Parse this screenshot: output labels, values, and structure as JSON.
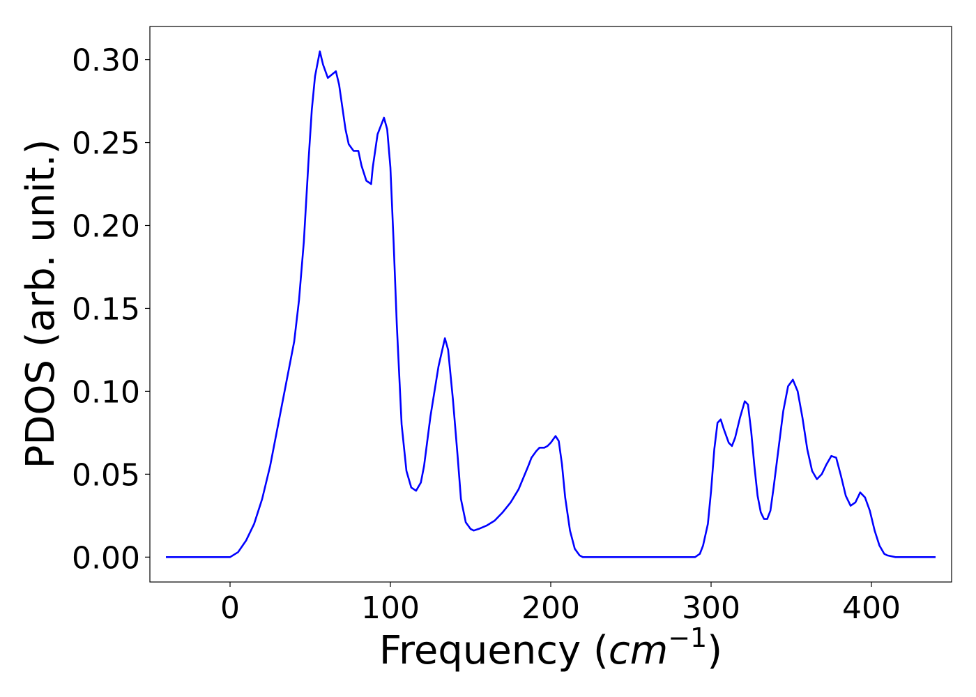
{
  "chart_data": {
    "type": "line",
    "title": "",
    "xlabel": "Frequency",
    "xlabel_unit_base": "cm",
    "xlabel_unit_exp": "−1",
    "ylabel": "PDOS (arb. unit.)",
    "xlim": [
      -50,
      450
    ],
    "ylim": [
      -0.015,
      0.32
    ],
    "xticks": [
      0,
      100,
      200,
      300,
      400
    ],
    "xtick_labels": [
      "0",
      "100",
      "200",
      "300",
      "400"
    ],
    "yticks": [
      0.0,
      0.05,
      0.1,
      0.15,
      0.2,
      0.25,
      0.3
    ],
    "ytick_labels": [
      "0.00",
      "0.05",
      "0.10",
      "0.15",
      "0.20",
      "0.25",
      "0.30"
    ],
    "grid": false,
    "series": [
      {
        "color": "#0000ff",
        "x": [
          -40,
          -10,
          0,
          5,
          10,
          15,
          20,
          25,
          30,
          35,
          40,
          43,
          46,
          49,
          51,
          53,
          56,
          58,
          61,
          66,
          68,
          72,
          74,
          77,
          80,
          82,
          85,
          88,
          89,
          92,
          96,
          98,
          100,
          102,
          104,
          107,
          110,
          113,
          116,
          119,
          121,
          125,
          130,
          134,
          136,
          139,
          142,
          144,
          147,
          150,
          152,
          155,
          160,
          165,
          170,
          175,
          180,
          183,
          186,
          188,
          191,
          193,
          196,
          198,
          200,
          203,
          205,
          207,
          209,
          212,
          215,
          218,
          220,
          225,
          250,
          280,
          290,
          293,
          295,
          298,
          300,
          302,
          304,
          306,
          308,
          311,
          313,
          315,
          318,
          321,
          323,
          325,
          327,
          329,
          331,
          333,
          335,
          337,
          339,
          342,
          345,
          348,
          351,
          354,
          357,
          360,
          363,
          366,
          369,
          372,
          375,
          378,
          381,
          384,
          387,
          390,
          393,
          396,
          399,
          402,
          405,
          408,
          410,
          415,
          440
        ],
        "y": [
          0.0,
          0.0,
          0.0,
          0.003,
          0.01,
          0.02,
          0.035,
          0.055,
          0.08,
          0.105,
          0.13,
          0.155,
          0.19,
          0.24,
          0.27,
          0.29,
          0.305,
          0.297,
          0.289,
          0.293,
          0.285,
          0.258,
          0.249,
          0.245,
          0.245,
          0.236,
          0.227,
          0.225,
          0.235,
          0.255,
          0.265,
          0.258,
          0.235,
          0.19,
          0.14,
          0.08,
          0.052,
          0.042,
          0.04,
          0.045,
          0.055,
          0.085,
          0.115,
          0.132,
          0.125,
          0.095,
          0.06,
          0.035,
          0.021,
          0.017,
          0.016,
          0.017,
          0.019,
          0.022,
          0.027,
          0.033,
          0.041,
          0.048,
          0.055,
          0.06,
          0.064,
          0.066,
          0.066,
          0.067,
          0.069,
          0.073,
          0.07,
          0.056,
          0.036,
          0.016,
          0.005,
          0.001,
          0.0,
          0.0,
          0.0,
          0.0,
          0.0,
          0.002,
          0.007,
          0.02,
          0.04,
          0.065,
          0.081,
          0.083,
          0.077,
          0.069,
          0.067,
          0.072,
          0.084,
          0.094,
          0.092,
          0.076,
          0.055,
          0.037,
          0.027,
          0.023,
          0.023,
          0.028,
          0.042,
          0.065,
          0.088,
          0.103,
          0.107,
          0.1,
          0.084,
          0.065,
          0.052,
          0.047,
          0.05,
          0.056,
          0.061,
          0.06,
          0.049,
          0.037,
          0.031,
          0.033,
          0.039,
          0.036,
          0.028,
          0.016,
          0.007,
          0.002,
          0.001,
          0.0,
          0.0
        ]
      }
    ]
  }
}
